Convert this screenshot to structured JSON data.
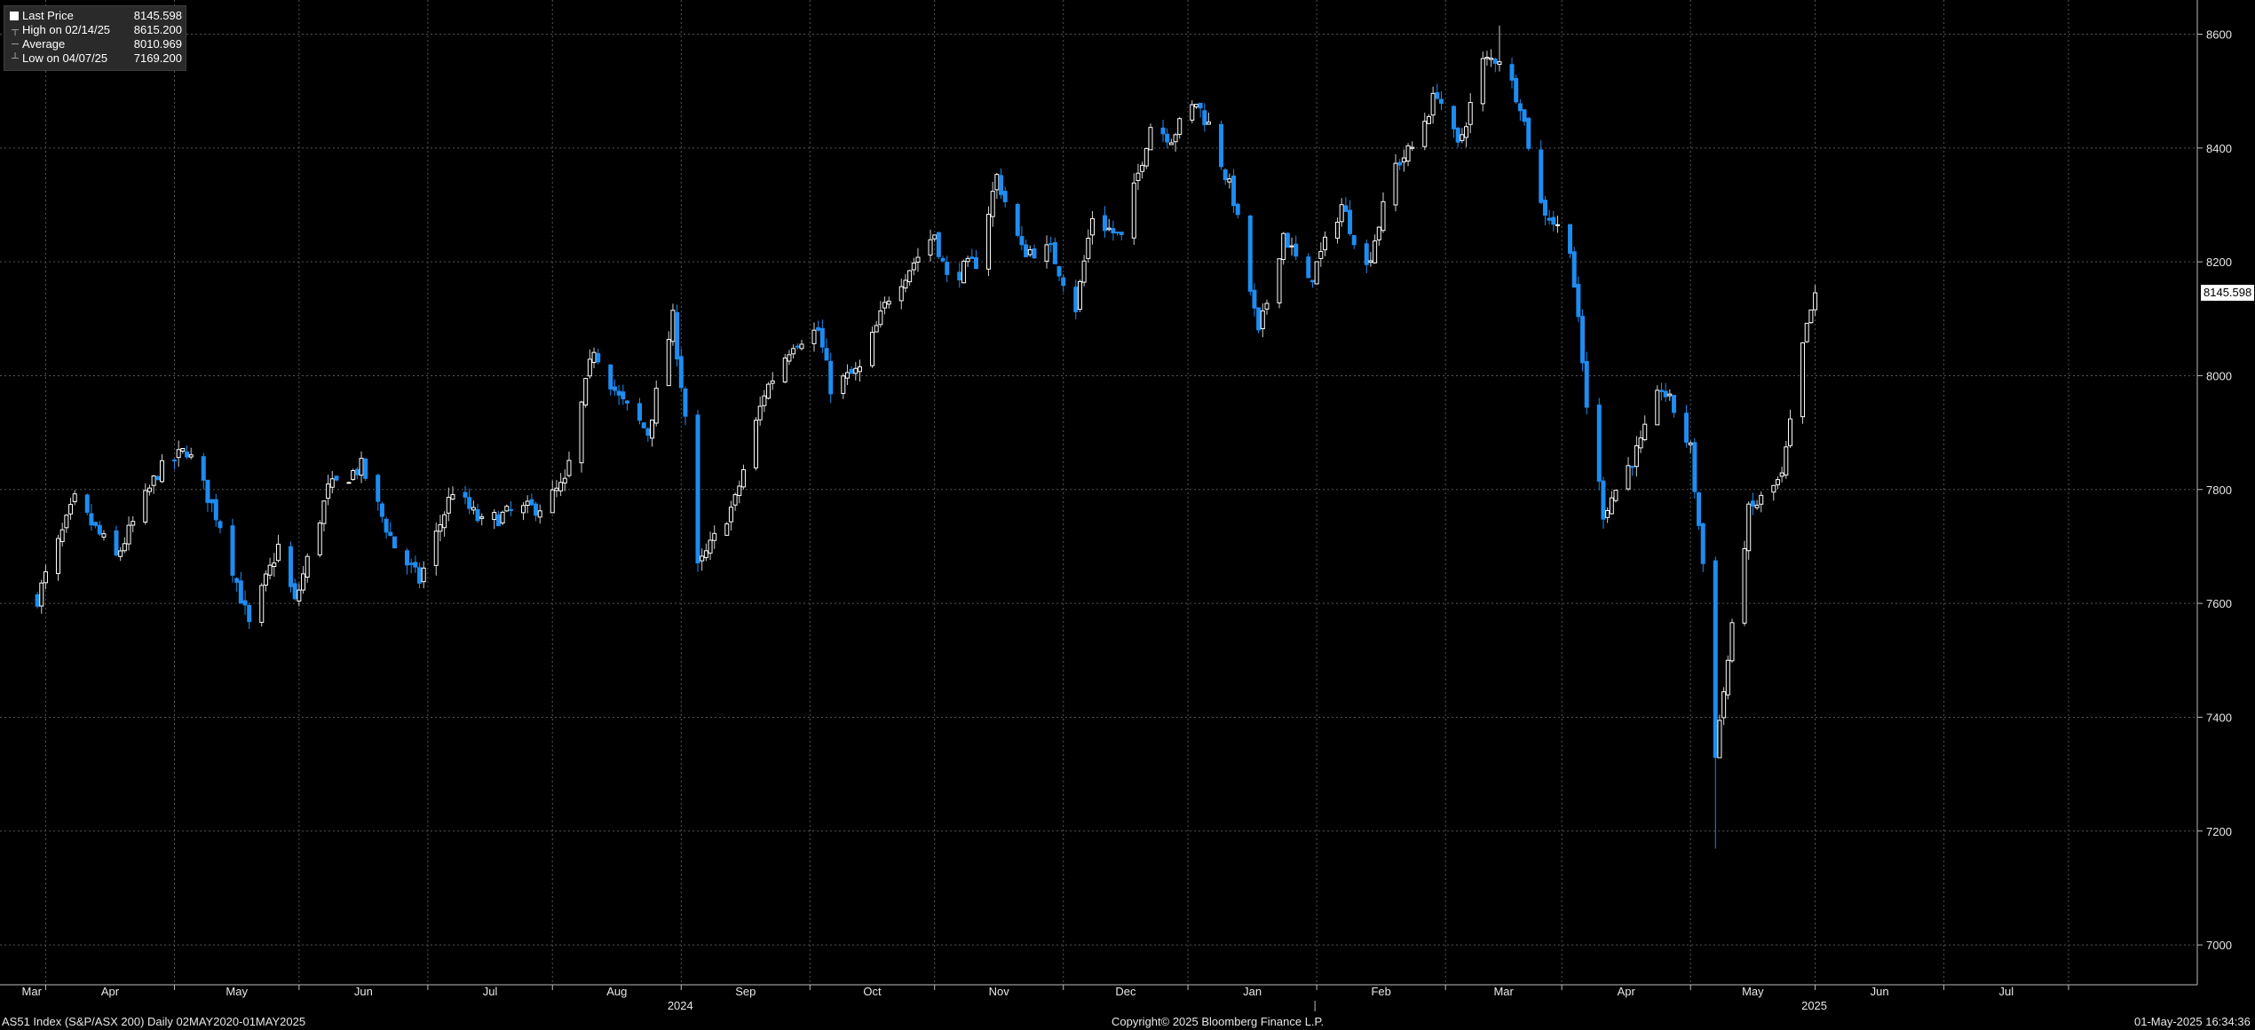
{
  "legend": {
    "last_price_label": "Last Price",
    "last_price_value": "8145.598",
    "high_label": "High on 02/14/25",
    "high_value": "8615.200",
    "average_label": "Average",
    "average_value": "8010.969",
    "low_label": "Low on 04/07/25",
    "low_value": "7169.200"
  },
  "last_price_tag": "8145.598",
  "footer": {
    "left": "AS51 Index (S&P/ASX 200)  Daily 02MAY2020-01MAY2025",
    "center": "Copyright© 2025 Bloomberg Finance L.P.",
    "right": "01-May-2025 16:34:36"
  },
  "colors": {
    "background": "#000000",
    "up_candle": "#ffffff",
    "down_candle": "#1e8cf0",
    "grid": "#555555"
  },
  "chart_data": {
    "type": "candlestick",
    "title": "AS51 Index (S&P/ASX 200)",
    "y_ticks": [
      7000,
      7200,
      7400,
      7600,
      7800,
      8000,
      8200,
      8400,
      8600
    ],
    "ylim": [
      6930,
      8660
    ],
    "x_month_labels": [
      "Mar",
      "Apr",
      "May",
      "Jun",
      "Jul",
      "Aug",
      "Sep",
      "Oct",
      "Nov",
      "Dec",
      "Jan",
      "Feb",
      "Mar",
      "Apr",
      "May",
      "Jun",
      "Jul"
    ],
    "x_year_labels": [
      "2024",
      "2025"
    ],
    "grid": true,
    "series_path": [
      [
        "2024-02-28",
        7610
      ],
      [
        "2024-03-08",
        7780
      ],
      [
        "2024-03-18",
        7680
      ],
      [
        "2024-03-28",
        7830
      ],
      [
        "2024-04-04",
        7870
      ],
      [
        "2024-04-12",
        7740
      ],
      [
        "2024-04-19",
        7560
      ],
      [
        "2024-04-26",
        7700
      ],
      [
        "2024-04-30",
        7600
      ],
      [
        "2024-05-08",
        7800
      ],
      [
        "2024-05-16",
        7840
      ],
      [
        "2024-05-24",
        7700
      ],
      [
        "2024-05-30",
        7640
      ],
      [
        "2024-06-07",
        7800
      ],
      [
        "2024-06-14",
        7740
      ],
      [
        "2024-06-21",
        7760
      ],
      [
        "2024-06-28",
        7770
      ],
      [
        "2024-07-04",
        7810
      ],
      [
        "2024-07-11",
        8050
      ],
      [
        "2024-07-17",
        7960
      ],
      [
        "2024-07-24",
        7900
      ],
      [
        "2024-07-30",
        8100
      ],
      [
        "2024-08-02",
        7930
      ],
      [
        "2024-08-05",
        7660
      ],
      [
        "2024-08-08",
        7700
      ],
      [
        "2024-08-14",
        7780
      ],
      [
        "2024-08-21",
        7970
      ],
      [
        "2024-08-28",
        8060
      ],
      [
        "2024-09-03",
        8080
      ],
      [
        "2024-09-06",
        7980
      ],
      [
        "2024-09-13",
        8010
      ],
      [
        "2024-09-20",
        8140
      ],
      [
        "2024-09-26",
        8200
      ],
      [
        "2024-10-01",
        8250
      ],
      [
        "2024-10-04",
        8170
      ],
      [
        "2024-10-11",
        8200
      ],
      [
        "2024-10-16",
        8350
      ],
      [
        "2024-10-22",
        8220
      ],
      [
        "2024-10-29",
        8220
      ],
      [
        "2024-11-04",
        8120
      ],
      [
        "2024-11-08",
        8280
      ],
      [
        "2024-11-15",
        8240
      ],
      [
        "2024-11-22",
        8440
      ],
      [
        "2024-11-27",
        8420
      ],
      [
        "2024-12-03",
        8480
      ],
      [
        "2024-12-06",
        8440
      ],
      [
        "2024-12-12",
        8310
      ],
      [
        "2024-12-18",
        8070
      ],
      [
        "2024-12-24",
        8250
      ],
      [
        "2024-12-30",
        8160
      ],
      [
        "2025-01-07",
        8300
      ],
      [
        "2025-01-13",
        8190
      ],
      [
        "2025-01-20",
        8370
      ],
      [
        "2025-01-24",
        8400
      ],
      [
        "2025-01-30",
        8500
      ],
      [
        "2025-02-04",
        8400
      ],
      [
        "2025-02-10",
        8550
      ],
      [
        "2025-02-14",
        8560
      ],
      [
        "2025-02-19",
        8480
      ],
      [
        "2025-02-24",
        8300
      ],
      [
        "2025-03-03",
        8230
      ],
      [
        "2025-03-07",
        7950
      ],
      [
        "2025-03-11",
        7760
      ],
      [
        "2025-03-14",
        7800
      ],
      [
        "2025-03-20",
        7880
      ],
      [
        "2025-03-25",
        7980
      ],
      [
        "2025-03-28",
        7940
      ],
      [
        "2025-04-01",
        7870
      ],
      [
        "2025-04-04",
        7670
      ],
      [
        "2025-04-07",
        7340
      ],
      [
        "2025-04-10",
        7500
      ],
      [
        "2025-04-15",
        7760
      ],
      [
        "2025-04-23",
        7820
      ],
      [
        "2025-04-28",
        8050
      ],
      [
        "2025-05-01",
        8145.598
      ]
    ],
    "last_price": 8145.598,
    "high": 8615.2,
    "low": 7169.2
  }
}
